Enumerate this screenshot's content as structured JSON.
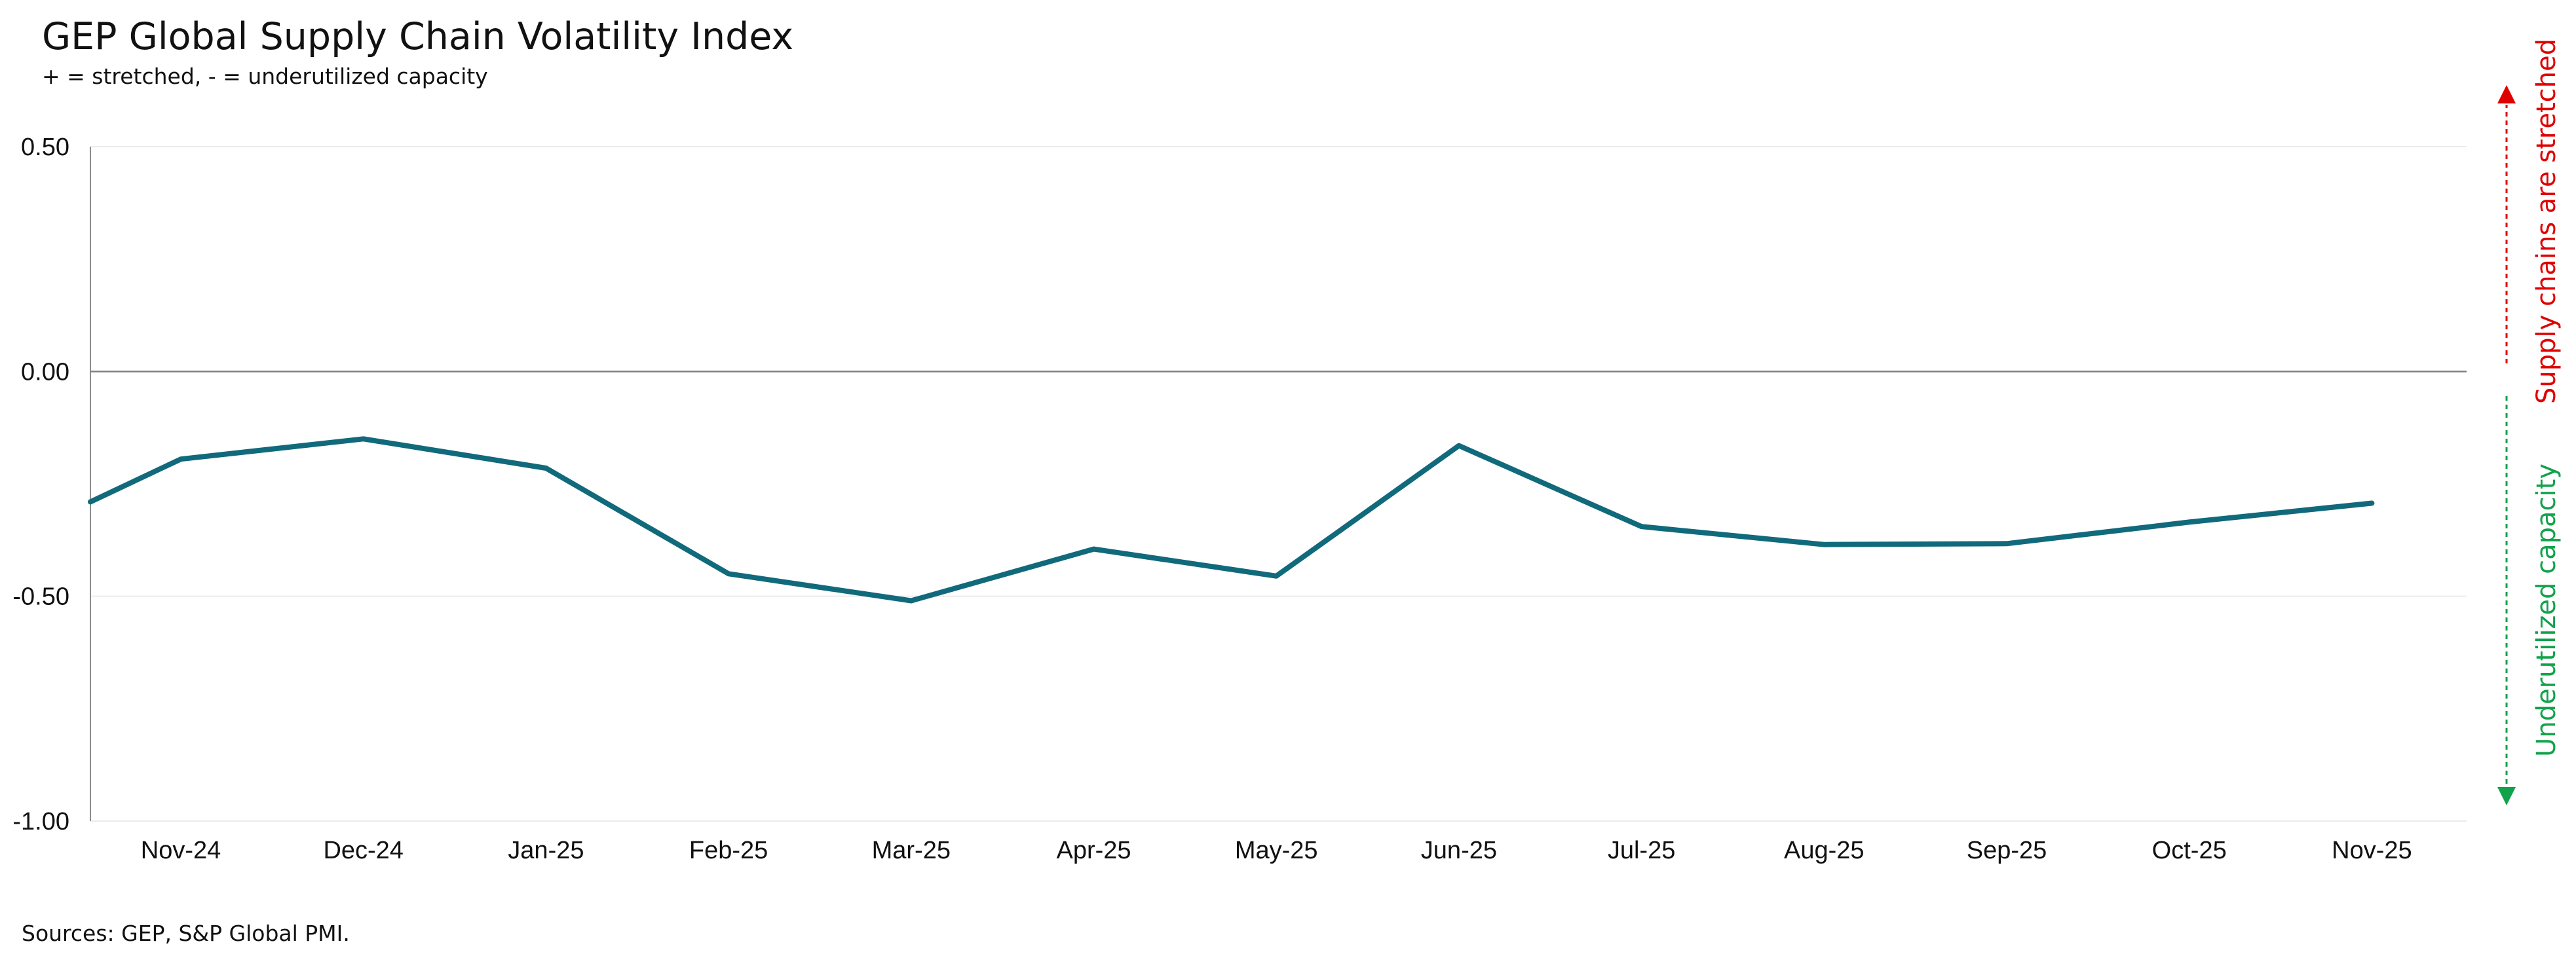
{
  "chart_data": {
    "type": "line",
    "title": "GEP Global Supply Chain Volatility Index",
    "subtitle": "+ = stretched, - = underutilized capacity",
    "source": "Sources: GEP, S&P Global PMI.",
    "xlabel": "",
    "ylabel": "",
    "ylim": [
      -1.0,
      0.5
    ],
    "yticks": [
      "0.50",
      "0.00",
      "-0.50",
      "-1.00"
    ],
    "ytick_values": [
      0.5,
      0.0,
      -0.5,
      -1.0
    ],
    "grid": true,
    "categories": [
      "Nov-24",
      "Dec-24",
      "Jan-25",
      "Feb-25",
      "Mar-25",
      "Apr-25",
      "May-25",
      "Jun-25",
      "Jul-25",
      "Aug-25",
      "Sep-25",
      "Oct-25",
      "Nov-25"
    ],
    "series": [
      {
        "line_start_value": -0.29,
        "values": [
          -0.195,
          -0.15,
          -0.215,
          -0.45,
          -0.51,
          -0.395,
          -0.455,
          -0.165,
          -0.345,
          -0.385,
          -0.383,
          -0.335,
          -0.293
        ],
        "color": "#116A7B"
      }
    ],
    "annotations": {
      "up": {
        "text": "Supply chains are stretched",
        "color": "#E00000"
      },
      "down": {
        "text": "Underutilized capacity",
        "color": "#12A24B"
      }
    }
  }
}
